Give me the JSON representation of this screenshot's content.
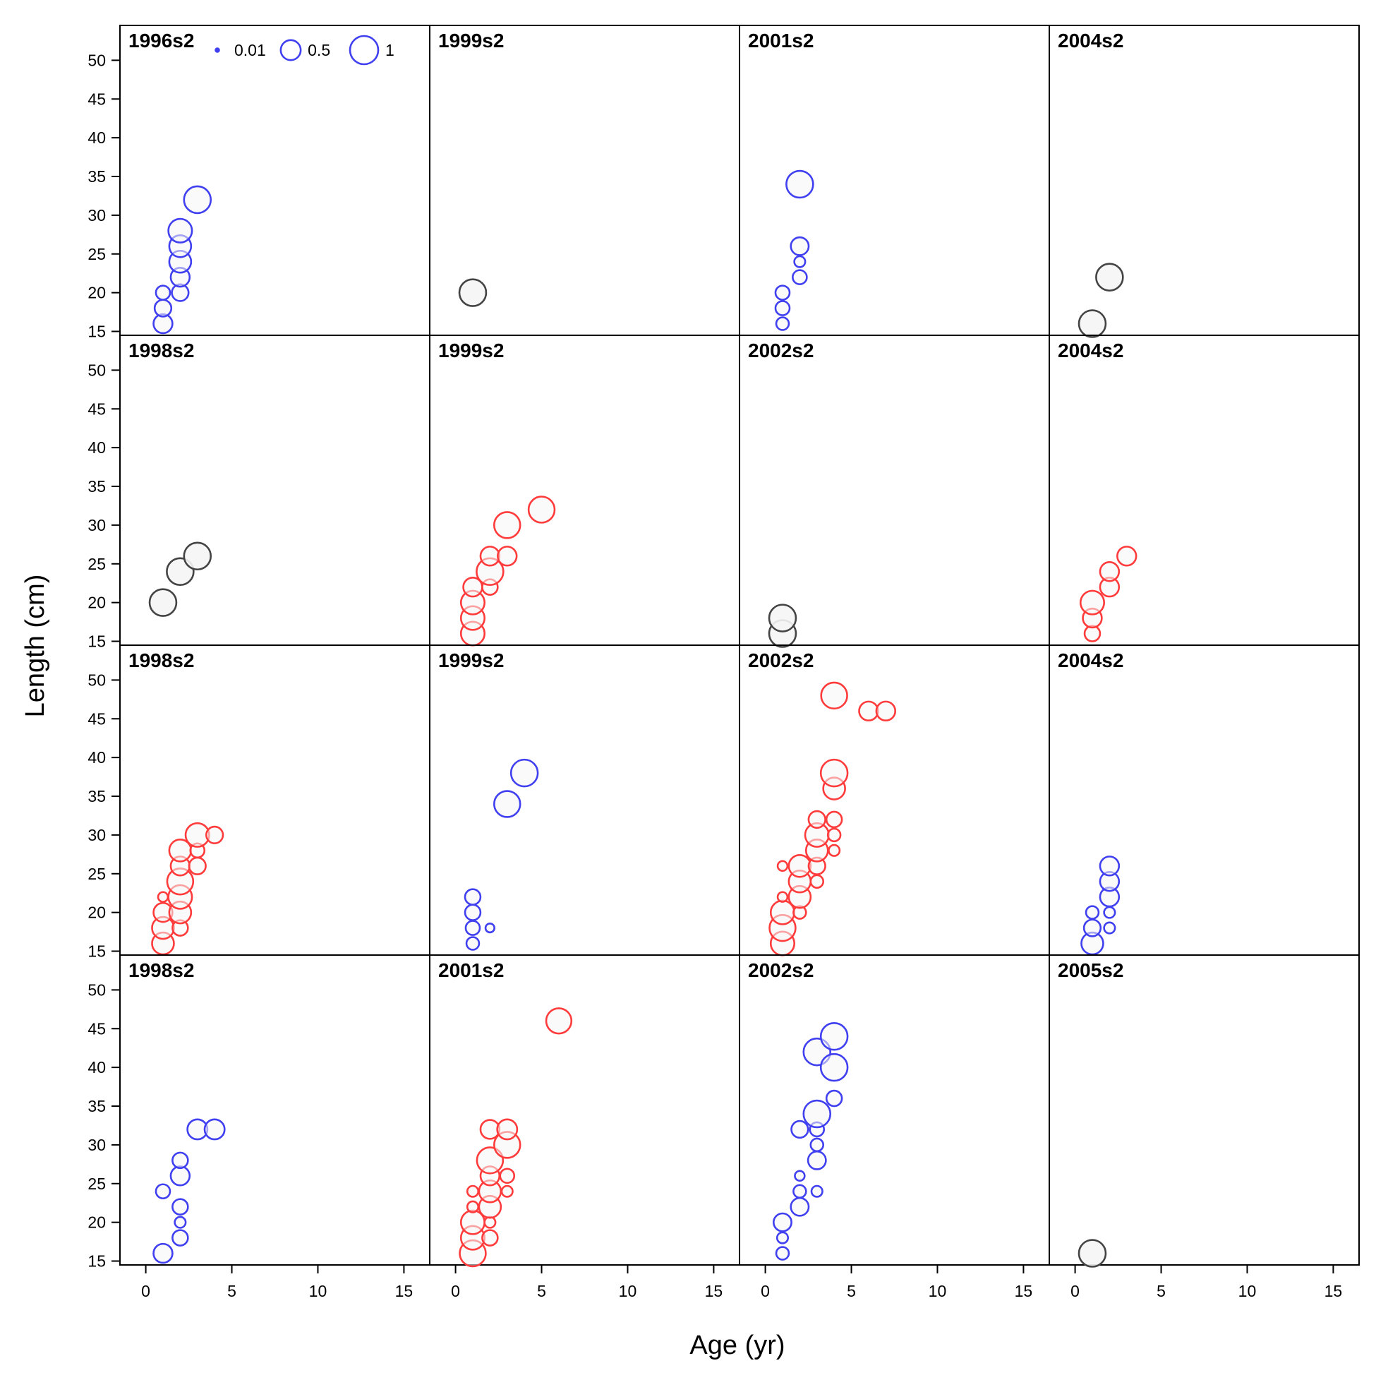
{
  "chart_data": {
    "type": "scatter",
    "subtype": "bubble-panels",
    "xlabel": "Age (yr)",
    "ylabel": "Length (cm)",
    "xlim": [
      -1.5,
      16.5
    ],
    "ylim": [
      14.5,
      54.5
    ],
    "xticks": [
      0,
      5,
      10,
      15
    ],
    "yticks": [
      15,
      20,
      25,
      30,
      35,
      40,
      45,
      50
    ],
    "grid": false,
    "colors": {
      "positive": "#ff3b3b",
      "negative": "#4040f0",
      "neutral": "#444444",
      "fill": "#f5f5f5"
    },
    "legend": {
      "placement": "top-left panel",
      "entries": [
        {
          "label": "0.01",
          "size": 0.01
        },
        {
          "label": "0.5",
          "size": 0.5
        },
        {
          "label": "1",
          "size": 1
        }
      ]
    },
    "panels": [
      {
        "label": "1996s2",
        "points": [
          {
            "x": 1,
            "y": 16,
            "size": 0.45,
            "color": "negative"
          },
          {
            "x": 1,
            "y": 18,
            "size": 0.35,
            "color": "negative"
          },
          {
            "x": 1,
            "y": 20,
            "size": 0.25,
            "color": "negative"
          },
          {
            "x": 2,
            "y": 20,
            "size": 0.35,
            "color": "negative"
          },
          {
            "x": 2,
            "y": 22,
            "size": 0.45,
            "color": "negative"
          },
          {
            "x": 2,
            "y": 24,
            "size": 0.6,
            "color": "negative"
          },
          {
            "x": 2,
            "y": 26,
            "size": 0.6,
            "color": "negative"
          },
          {
            "x": 2,
            "y": 28,
            "size": 0.7,
            "color": "negative"
          },
          {
            "x": 3,
            "y": 32,
            "size": 0.9,
            "color": "negative"
          }
        ]
      },
      {
        "label": "1999s2",
        "points": [
          {
            "x": 1,
            "y": 20,
            "size": 0.9,
            "color": "neutral"
          }
        ]
      },
      {
        "label": "2001s2",
        "points": [
          {
            "x": 1,
            "y": 16,
            "size": 0.2,
            "color": "negative"
          },
          {
            "x": 1,
            "y": 18,
            "size": 0.25,
            "color": "negative"
          },
          {
            "x": 1,
            "y": 20,
            "size": 0.25,
            "color": "negative"
          },
          {
            "x": 2,
            "y": 22,
            "size": 0.25,
            "color": "negative"
          },
          {
            "x": 2,
            "y": 24,
            "size": 0.15,
            "color": "negative"
          },
          {
            "x": 2,
            "y": 26,
            "size": 0.4,
            "color": "negative"
          },
          {
            "x": 2,
            "y": 34,
            "size": 0.9,
            "color": "negative"
          }
        ]
      },
      {
        "label": "2004s2",
        "points": [
          {
            "x": 1,
            "y": 16,
            "size": 0.9,
            "color": "neutral"
          },
          {
            "x": 2,
            "y": 22,
            "size": 0.9,
            "color": "neutral"
          }
        ]
      },
      {
        "label": "1998s2",
        "points": [
          {
            "x": 1,
            "y": 20,
            "size": 0.9,
            "color": "neutral"
          },
          {
            "x": 2,
            "y": 24,
            "size": 0.9,
            "color": "neutral"
          },
          {
            "x": 3,
            "y": 26,
            "size": 0.9,
            "color": "neutral"
          }
        ]
      },
      {
        "label": "1999s2",
        "points": [
          {
            "x": 1,
            "y": 16,
            "size": 0.7,
            "color": "positive"
          },
          {
            "x": 1,
            "y": 18,
            "size": 0.7,
            "color": "positive"
          },
          {
            "x": 1,
            "y": 20,
            "size": 0.7,
            "color": "positive"
          },
          {
            "x": 1,
            "y": 22,
            "size": 0.45,
            "color": "positive"
          },
          {
            "x": 2,
            "y": 22,
            "size": 0.3,
            "color": "positive"
          },
          {
            "x": 2,
            "y": 24,
            "size": 0.9,
            "color": "positive"
          },
          {
            "x": 2,
            "y": 26,
            "size": 0.45,
            "color": "positive"
          },
          {
            "x": 3,
            "y": 26,
            "size": 0.45,
            "color": "positive"
          },
          {
            "x": 3,
            "y": 30,
            "size": 0.85,
            "color": "positive"
          },
          {
            "x": 5,
            "y": 32,
            "size": 0.85,
            "color": "positive"
          }
        ]
      },
      {
        "label": "2002s2",
        "points": [
          {
            "x": 1,
            "y": 16,
            "size": 0.9,
            "color": "neutral"
          },
          {
            "x": 1,
            "y": 18,
            "size": 0.9,
            "color": "neutral"
          }
        ]
      },
      {
        "label": "2004s2",
        "points": [
          {
            "x": 1,
            "y": 16,
            "size": 0.3,
            "color": "positive"
          },
          {
            "x": 1,
            "y": 18,
            "size": 0.45,
            "color": "positive"
          },
          {
            "x": 1,
            "y": 20,
            "size": 0.7,
            "color": "positive"
          },
          {
            "x": 2,
            "y": 22,
            "size": 0.45,
            "color": "positive"
          },
          {
            "x": 2,
            "y": 24,
            "size": 0.45,
            "color": "positive"
          },
          {
            "x": 3,
            "y": 26,
            "size": 0.45,
            "color": "positive"
          }
        ]
      },
      {
        "label": "1998s2",
        "points": [
          {
            "x": 1,
            "y": 16,
            "size": 0.6,
            "color": "positive"
          },
          {
            "x": 1,
            "y": 18,
            "size": 0.6,
            "color": "positive"
          },
          {
            "x": 1,
            "y": 20,
            "size": 0.45,
            "color": "positive"
          },
          {
            "x": 1,
            "y": 22,
            "size": 0.12,
            "color": "positive"
          },
          {
            "x": 2,
            "y": 18,
            "size": 0.3,
            "color": "positive"
          },
          {
            "x": 2,
            "y": 20,
            "size": 0.6,
            "color": "positive"
          },
          {
            "x": 2,
            "y": 22,
            "size": 0.7,
            "color": "positive"
          },
          {
            "x": 2,
            "y": 24,
            "size": 0.85,
            "color": "positive"
          },
          {
            "x": 2,
            "y": 26,
            "size": 0.45,
            "color": "positive"
          },
          {
            "x": 2,
            "y": 28,
            "size": 0.6,
            "color": "positive"
          },
          {
            "x": 3,
            "y": 26,
            "size": 0.35,
            "color": "positive"
          },
          {
            "x": 3,
            "y": 28,
            "size": 0.25,
            "color": "positive"
          },
          {
            "x": 3,
            "y": 30,
            "size": 0.7,
            "color": "positive"
          },
          {
            "x": 4,
            "y": 30,
            "size": 0.35,
            "color": "positive"
          }
        ]
      },
      {
        "label": "1999s2",
        "points": [
          {
            "x": 1,
            "y": 16,
            "size": 0.2,
            "color": "negative"
          },
          {
            "x": 1,
            "y": 18,
            "size": 0.25,
            "color": "negative"
          },
          {
            "x": 1,
            "y": 20,
            "size": 0.3,
            "color": "negative"
          },
          {
            "x": 1,
            "y": 22,
            "size": 0.3,
            "color": "negative"
          },
          {
            "x": 2,
            "y": 18,
            "size": 0.1,
            "color": "negative"
          },
          {
            "x": 3,
            "y": 34,
            "size": 0.85,
            "color": "negative"
          },
          {
            "x": 4,
            "y": 38,
            "size": 0.9,
            "color": "negative"
          }
        ]
      },
      {
        "label": "2002s2",
        "points": [
          {
            "x": 1,
            "y": 16,
            "size": 0.7,
            "color": "positive"
          },
          {
            "x": 1,
            "y": 18,
            "size": 0.85,
            "color": "positive"
          },
          {
            "x": 1,
            "y": 20,
            "size": 0.7,
            "color": "positive"
          },
          {
            "x": 1,
            "y": 22,
            "size": 0.12,
            "color": "positive"
          },
          {
            "x": 1,
            "y": 26,
            "size": 0.12,
            "color": "positive"
          },
          {
            "x": 2,
            "y": 20,
            "size": 0.2,
            "color": "positive"
          },
          {
            "x": 2,
            "y": 22,
            "size": 0.6,
            "color": "positive"
          },
          {
            "x": 2,
            "y": 24,
            "size": 0.6,
            "color": "positive"
          },
          {
            "x": 2,
            "y": 26,
            "size": 0.6,
            "color": "positive"
          },
          {
            "x": 3,
            "y": 24,
            "size": 0.2,
            "color": "positive"
          },
          {
            "x": 3,
            "y": 26,
            "size": 0.35,
            "color": "positive"
          },
          {
            "x": 3,
            "y": 28,
            "size": 0.6,
            "color": "positive"
          },
          {
            "x": 3,
            "y": 30,
            "size": 0.7,
            "color": "positive"
          },
          {
            "x": 3,
            "y": 32,
            "size": 0.35,
            "color": "positive"
          },
          {
            "x": 4,
            "y": 28,
            "size": 0.15,
            "color": "positive"
          },
          {
            "x": 4,
            "y": 30,
            "size": 0.2,
            "color": "positive"
          },
          {
            "x": 4,
            "y": 32,
            "size": 0.3,
            "color": "positive"
          },
          {
            "x": 4,
            "y": 36,
            "size": 0.6,
            "color": "positive"
          },
          {
            "x": 4,
            "y": 38,
            "size": 0.9,
            "color": "positive"
          },
          {
            "x": 4,
            "y": 48,
            "size": 0.85,
            "color": "positive"
          },
          {
            "x": 6,
            "y": 46,
            "size": 0.45,
            "color": "positive"
          },
          {
            "x": 7,
            "y": 46,
            "size": 0.45,
            "color": "positive"
          }
        ]
      },
      {
        "label": "2004s2",
        "points": [
          {
            "x": 1,
            "y": 16,
            "size": 0.6,
            "color": "negative"
          },
          {
            "x": 1,
            "y": 18,
            "size": 0.35,
            "color": "negative"
          },
          {
            "x": 1,
            "y": 20,
            "size": 0.2,
            "color": "negative"
          },
          {
            "x": 2,
            "y": 18,
            "size": 0.15,
            "color": "negative"
          },
          {
            "x": 2,
            "y": 20,
            "size": 0.15,
            "color": "negative"
          },
          {
            "x": 2,
            "y": 22,
            "size": 0.45,
            "color": "negative"
          },
          {
            "x": 2,
            "y": 24,
            "size": 0.45,
            "color": "negative"
          },
          {
            "x": 2,
            "y": 26,
            "size": 0.45,
            "color": "negative"
          }
        ]
      },
      {
        "label": "1998s2",
        "points": [
          {
            "x": 1,
            "y": 16,
            "size": 0.45,
            "color": "negative"
          },
          {
            "x": 1,
            "y": 24,
            "size": 0.25,
            "color": "negative"
          },
          {
            "x": 2,
            "y": 18,
            "size": 0.3,
            "color": "negative"
          },
          {
            "x": 2,
            "y": 20,
            "size": 0.15,
            "color": "negative"
          },
          {
            "x": 2,
            "y": 22,
            "size": 0.3,
            "color": "negative"
          },
          {
            "x": 2,
            "y": 26,
            "size": 0.45,
            "color": "negative"
          },
          {
            "x": 2,
            "y": 28,
            "size": 0.3,
            "color": "negative"
          },
          {
            "x": 3,
            "y": 32,
            "size": 0.5,
            "color": "negative"
          },
          {
            "x": 4,
            "y": 32,
            "size": 0.5,
            "color": "negative"
          }
        ]
      },
      {
        "label": "2001s2",
        "points": [
          {
            "x": 1,
            "y": 16,
            "size": 0.85,
            "color": "positive"
          },
          {
            "x": 1,
            "y": 18,
            "size": 0.7,
            "color": "positive"
          },
          {
            "x": 1,
            "y": 20,
            "size": 0.7,
            "color": "positive"
          },
          {
            "x": 1,
            "y": 22,
            "size": 0.15,
            "color": "positive"
          },
          {
            "x": 1,
            "y": 24,
            "size": 0.15,
            "color": "positive"
          },
          {
            "x": 2,
            "y": 18,
            "size": 0.3,
            "color": "positive"
          },
          {
            "x": 2,
            "y": 20,
            "size": 0.15,
            "color": "positive"
          },
          {
            "x": 2,
            "y": 22,
            "size": 0.6,
            "color": "positive"
          },
          {
            "x": 2,
            "y": 24,
            "size": 0.6,
            "color": "positive"
          },
          {
            "x": 2,
            "y": 26,
            "size": 0.45,
            "color": "positive"
          },
          {
            "x": 2,
            "y": 28,
            "size": 0.85,
            "color": "positive"
          },
          {
            "x": 2,
            "y": 32,
            "size": 0.45,
            "color": "positive"
          },
          {
            "x": 3,
            "y": 24,
            "size": 0.15,
            "color": "positive"
          },
          {
            "x": 3,
            "y": 26,
            "size": 0.25,
            "color": "positive"
          },
          {
            "x": 3,
            "y": 30,
            "size": 0.85,
            "color": "positive"
          },
          {
            "x": 3,
            "y": 32,
            "size": 0.5,
            "color": "positive"
          },
          {
            "x": 6,
            "y": 46,
            "size": 0.8,
            "color": "positive"
          }
        ]
      },
      {
        "label": "2002s2",
        "points": [
          {
            "x": 1,
            "y": 16,
            "size": 0.2,
            "color": "negative"
          },
          {
            "x": 1,
            "y": 18,
            "size": 0.15,
            "color": "negative"
          },
          {
            "x": 1,
            "y": 20,
            "size": 0.4,
            "color": "negative"
          },
          {
            "x": 2,
            "y": 22,
            "size": 0.4,
            "color": "negative"
          },
          {
            "x": 2,
            "y": 24,
            "size": 0.2,
            "color": "negative"
          },
          {
            "x": 2,
            "y": 26,
            "size": 0.12,
            "color": "negative"
          },
          {
            "x": 2,
            "y": 32,
            "size": 0.35,
            "color": "negative"
          },
          {
            "x": 3,
            "y": 24,
            "size": 0.15,
            "color": "negative"
          },
          {
            "x": 3,
            "y": 28,
            "size": 0.4,
            "color": "negative"
          },
          {
            "x": 3,
            "y": 30,
            "size": 0.2,
            "color": "negative"
          },
          {
            "x": 3,
            "y": 32,
            "size": 0.25,
            "color": "negative"
          },
          {
            "x": 3,
            "y": 34,
            "size": 0.9,
            "color": "negative"
          },
          {
            "x": 3,
            "y": 42,
            "size": 0.9,
            "color": "negative"
          },
          {
            "x": 4,
            "y": 36,
            "size": 0.3,
            "color": "negative"
          },
          {
            "x": 4,
            "y": 40,
            "size": 0.9,
            "color": "negative"
          },
          {
            "x": 4,
            "y": 44,
            "size": 0.9,
            "color": "negative"
          }
        ]
      },
      {
        "label": "2005s2",
        "points": [
          {
            "x": 1,
            "y": 16,
            "size": 0.9,
            "color": "neutral"
          }
        ]
      }
    ]
  }
}
